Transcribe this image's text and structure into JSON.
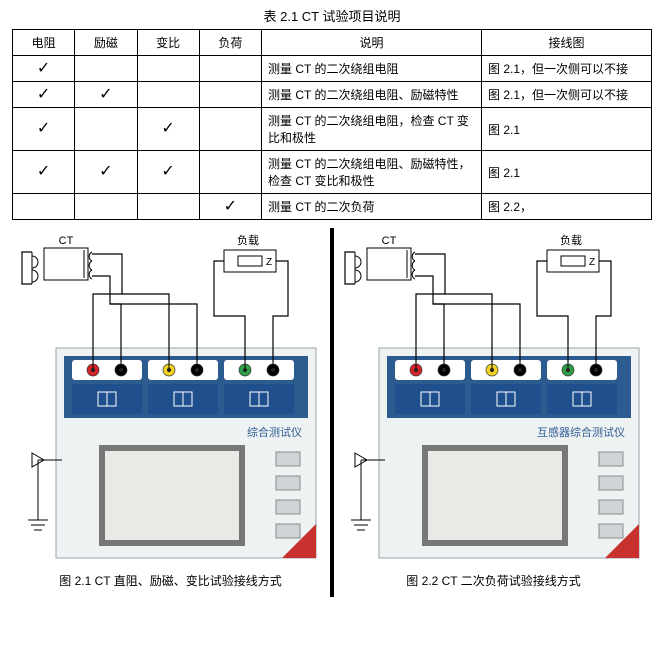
{
  "table": {
    "title": "表 2.1  CT 试验项目说明",
    "headers": [
      "电阻",
      "励磁",
      "变比",
      "负荷",
      "说明",
      "接线图"
    ],
    "rows": [
      {
        "checks": [
          true,
          false,
          false,
          false
        ],
        "desc": "测量 CT 的二次绕组电阻",
        "wiring": "图 2.1，但一次侧可以不接"
      },
      {
        "checks": [
          true,
          true,
          false,
          false
        ],
        "desc": "测量 CT 的二次绕组电阻、励磁特性",
        "wiring": "图 2.1，但一次侧可以不接"
      },
      {
        "checks": [
          true,
          false,
          true,
          false
        ],
        "desc": "测量 CT 的二次绕组电阻，检查\nCT 变比和极性",
        "wiring": "图 2.1"
      },
      {
        "checks": [
          true,
          true,
          true,
          false
        ],
        "desc": "测量 CT 的二次绕组电阻、励磁特性，检查 CT 变比和极性",
        "wiring": "图 2.1"
      },
      {
        "checks": [
          false,
          false,
          false,
          true
        ],
        "desc": "测量 CT 的二次负荷",
        "wiring": "图 2.2，"
      }
    ]
  },
  "diagrams": {
    "left": {
      "device_label": "综合测试仪",
      "ct_label": "CT",
      "load_label": "负载",
      "z_label": "Z",
      "caption": "图 2.1  CT 直阻、励磁、变比试验接线方式"
    },
    "right": {
      "device_label": "互感器综合测试仪",
      "ct_label": "CT",
      "load_label": "负载",
      "z_label": "Z",
      "caption": "图 2.2  CT 二次负荷试验接线方式"
    }
  },
  "style": {
    "panel_blue": "#2c5b8f",
    "panel_bg": "#eef2f3",
    "screen_bg": "#e9eae6",
    "terminal_blue": "#1f4f8d",
    "red": "#d8232a",
    "yellow": "#f4d223",
    "green": "#2f9e44",
    "black": "#000000",
    "red_triangle": "#c8322e",
    "white": "#ffffff"
  }
}
